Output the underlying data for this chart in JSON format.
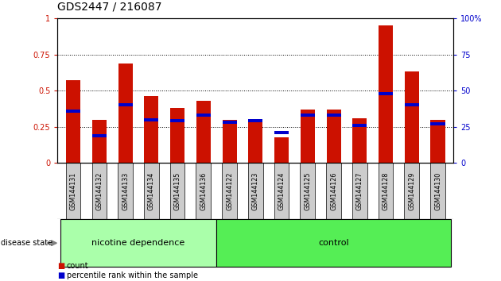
{
  "title": "GDS2447 / 216087",
  "samples": [
    "GSM144131",
    "GSM144132",
    "GSM144133",
    "GSM144134",
    "GSM144135",
    "GSM144136",
    "GSM144122",
    "GSM144123",
    "GSM144124",
    "GSM144125",
    "GSM144126",
    "GSM144127",
    "GSM144128",
    "GSM144129",
    "GSM144130"
  ],
  "red_values": [
    0.57,
    0.3,
    0.69,
    0.46,
    0.38,
    0.43,
    0.3,
    0.3,
    0.18,
    0.37,
    0.37,
    0.31,
    0.95,
    0.63,
    0.3
  ],
  "blue_values": [
    0.36,
    0.19,
    0.4,
    0.3,
    0.29,
    0.33,
    0.28,
    0.29,
    0.21,
    0.33,
    0.33,
    0.26,
    0.48,
    0.4,
    0.27
  ],
  "group1_label": "nicotine dependence",
  "group2_label": "control",
  "group1_count": 6,
  "group2_count": 9,
  "disease_state_label": "disease state",
  "legend_count": "count",
  "legend_percentile": "percentile rank within the sample",
  "red_color": "#cc1100",
  "blue_color": "#0000cc",
  "ylim": [
    0,
    1.0
  ],
  "yticks": [
    0,
    0.25,
    0.5,
    0.75,
    1.0
  ],
  "ytick_labels_left": [
    "0",
    "0.25",
    "0.5",
    "0.75",
    "1"
  ],
  "ytick_labels_right": [
    "0",
    "25",
    "50",
    "75",
    "100%"
  ],
  "bar_width": 0.55,
  "bg_color": "#ffffff",
  "group1_bg": "#aaffaa",
  "group2_bg": "#55ee55",
  "tick_area_bg": "#cccccc",
  "title_fontsize": 10,
  "tick_fontsize": 7,
  "label_fontsize": 8,
  "blue_bar_height": 0.022
}
